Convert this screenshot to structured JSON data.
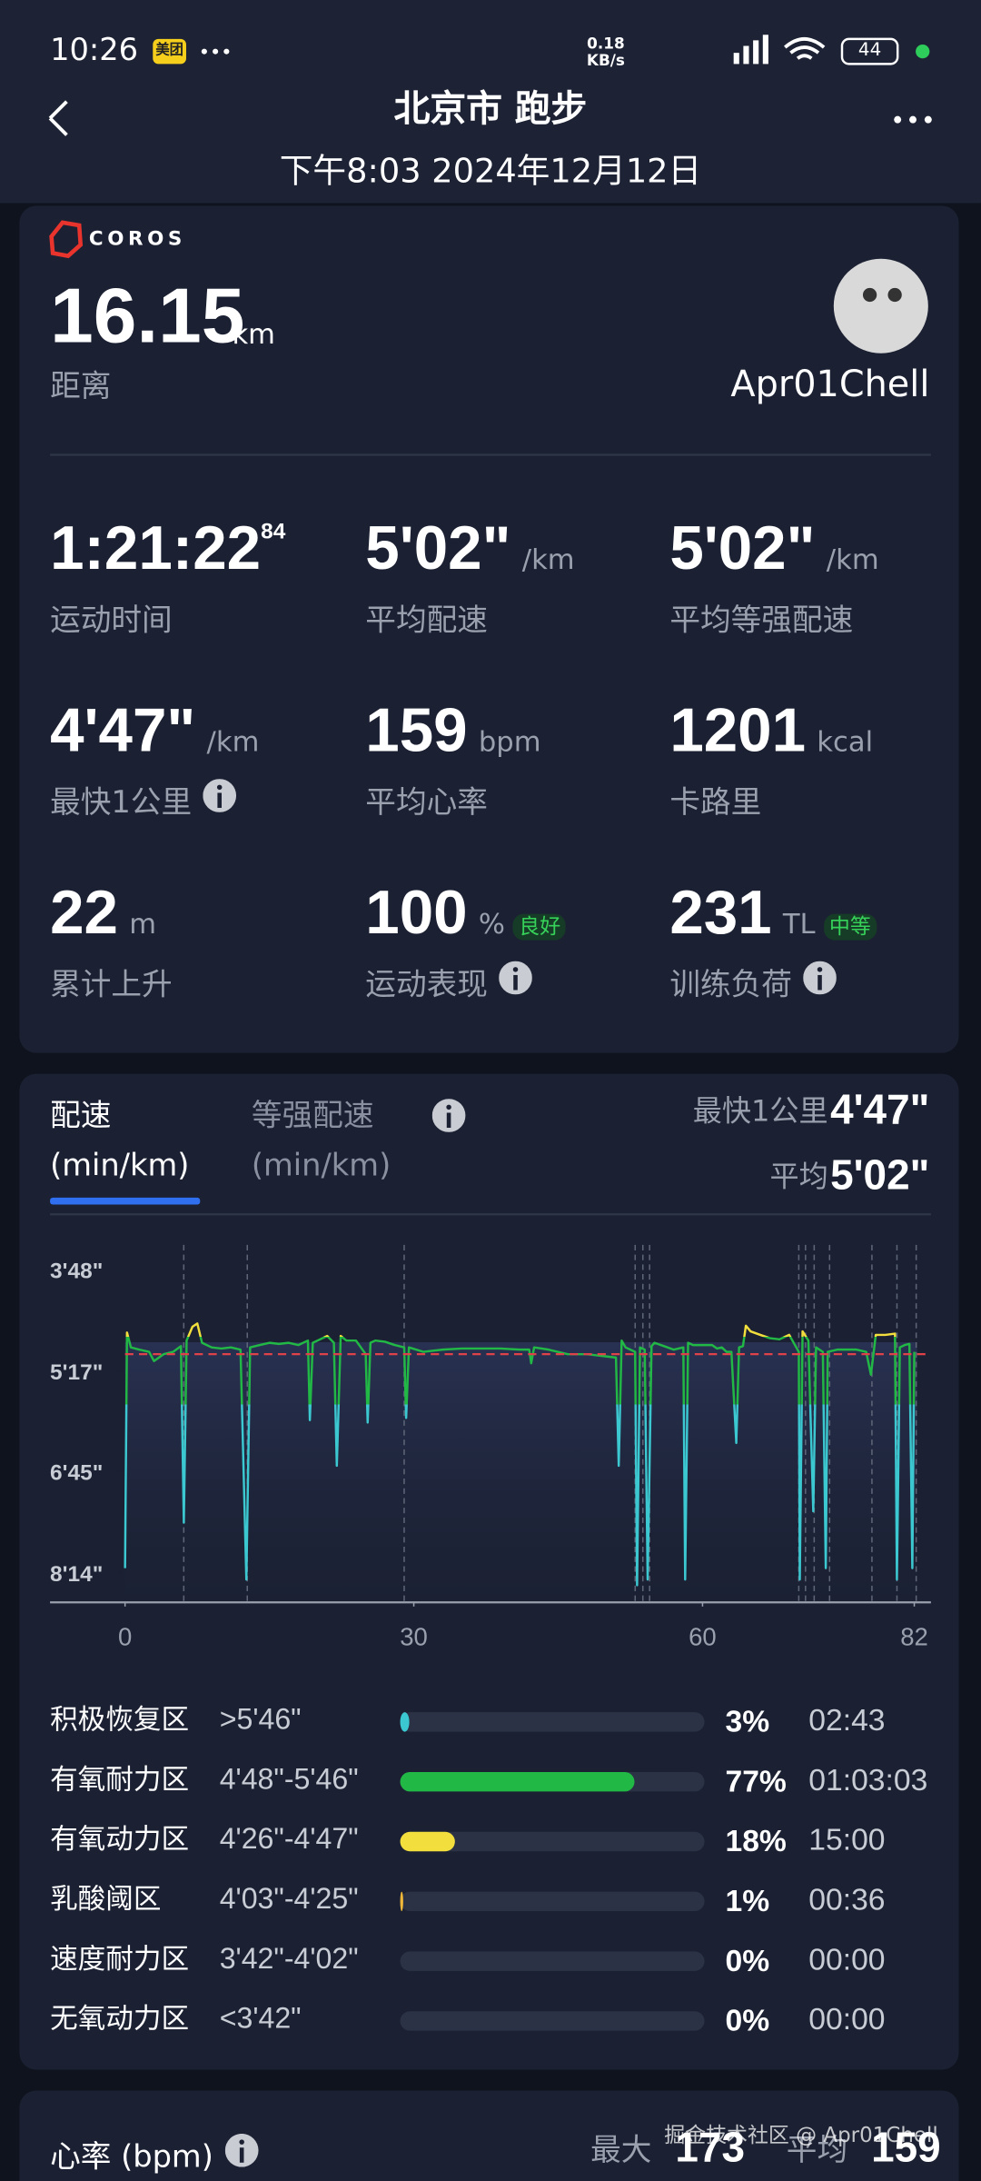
{
  "status_bar": {
    "time": "10:26",
    "app_badge": "美团",
    "net_speed": "0.18",
    "net_unit": "KB/s",
    "battery": "44"
  },
  "header": {
    "title": "北京市 跑步",
    "subtitle": "下午8:03 2024年12月12日"
  },
  "summary": {
    "brand": "COROS",
    "distance": "16.15",
    "distance_unit": "km",
    "distance_label": "距离",
    "user": "Apr01Chell",
    "stats": [
      {
        "value": "1:21:22",
        "sup": "84",
        "label": "运动时间"
      },
      {
        "value": "5'02\"",
        "unit": "/km",
        "label": "平均配速"
      },
      {
        "value": "5'02\"",
        "unit": "/km",
        "label": "平均等强配速"
      },
      {
        "value": "4'47\"",
        "unit": "/km",
        "label": "最快1公里",
        "info": true
      },
      {
        "value": "159",
        "unit": "bpm",
        "label": "平均心率"
      },
      {
        "value": "1201",
        "unit": "kcal",
        "label": "卡路里"
      },
      {
        "value": "22",
        "unit": "m",
        "label": "累计上升"
      },
      {
        "value": "100",
        "unit": "%",
        "badge": "良好",
        "label": "运动表现",
        "info": true
      },
      {
        "value": "231",
        "unit": "TL",
        "badge": "中等",
        "label": "训练负荷",
        "info": true
      }
    ]
  },
  "pace_card": {
    "tabs": [
      {
        "title": "配速",
        "unit": "(min/km)",
        "active": true
      },
      {
        "title": "等强配速",
        "unit": "(min/km)",
        "active": false,
        "info": true
      }
    ],
    "fastest_label": "最快1公里",
    "fastest": "4'47\"",
    "average_label": "平均",
    "zones": [
      {
        "name": "积极恢复区",
        "range": ">5'46\"",
        "percent": 3,
        "percent_label": "3%",
        "time": "02:43",
        "color": "#3cc8d0"
      },
      {
        "name": "有氧耐力区",
        "range": "4'48\"-5'46\"",
        "percent": 77,
        "percent_label": "77%",
        "time": "01:03:03",
        "color": "#22b845"
      },
      {
        "name": "有氧动力区",
        "range": "4'26\"-4'47\"",
        "percent": 18,
        "percent_label": "18%",
        "time": "15:00",
        "color": "#f2de3c"
      },
      {
        "name": "乳酸阈区",
        "range": "4'03\"-4'25\"",
        "percent": 1,
        "percent_label": "1%",
        "time": "00:36",
        "color": "#f0b838"
      },
      {
        "name": "速度耐力区",
        "range": "3'42\"-4'02\"",
        "percent": 0,
        "percent_label": "0%",
        "time": "00:00"
      },
      {
        "name": "无氧动力区",
        "range": "<3'42\"",
        "percent": 0,
        "percent_label": "0%",
        "time": "00:00"
      }
    ]
  },
  "chart_data": {
    "type": "line",
    "x": [
      0,
      0.2,
      0.6,
      1.5,
      2.5,
      3,
      4,
      5,
      5.8,
      6.1,
      6.4,
      7,
      7.5,
      8,
      9,
      10,
      11,
      12,
      12.6,
      13,
      14,
      15,
      16,
      17,
      18,
      19,
      19.2,
      19.5,
      20,
      21,
      21.7,
      22,
      22.4,
      23,
      24,
      25,
      25.2,
      25.5,
      26,
      27,
      28,
      29,
      29.2,
      29.5,
      31,
      33,
      35,
      37,
      39,
      41,
      42,
      42.2,
      42.5,
      44,
      46,
      48,
      49,
      50,
      51,
      51.3,
      51.6,
      52,
      53,
      53.2,
      53.5,
      54,
      54.3,
      54.7,
      55,
      56,
      57,
      58,
      58.2,
      58.5,
      59,
      60,
      61,
      61.5,
      62,
      62.5,
      63,
      63.5,
      63.8,
      64.2,
      64.5,
      65,
      66,
      67,
      68,
      69,
      70,
      70.1,
      70.4,
      71,
      71.5,
      71.8,
      72.5,
      72.8,
      73,
      74,
      75,
      76,
      77,
      77.5,
      78,
      79,
      80,
      80.2,
      80.5,
      81,
      81.5,
      81.8,
      82
    ],
    "values": [
      490,
      283,
      296,
      298,
      300,
      308,
      302,
      300,
      295,
      450,
      290,
      278,
      275,
      292,
      296,
      297,
      296,
      298,
      500,
      296,
      294,
      292,
      293,
      292,
      294,
      290,
      360,
      292,
      290,
      286,
      292,
      400,
      286,
      290,
      290,
      302,
      362,
      292,
      290,
      291,
      294,
      296,
      358,
      296,
      300,
      298,
      297,
      297,
      297,
      298,
      298,
      310,
      296,
      298,
      302,
      302,
      303,
      304,
      305,
      400,
      290,
      296,
      300,
      505,
      296,
      298,
      500,
      295,
      292,
      295,
      298,
      296,
      500,
      292,
      294,
      294,
      294,
      297,
      296,
      300,
      300,
      380,
      296,
      295,
      277,
      282,
      285,
      288,
      289,
      285,
      300,
      500,
      282,
      290,
      440,
      296,
      300,
      490,
      300,
      298,
      298,
      298,
      300,
      320,
      285,
      285,
      284,
      500,
      296,
      294,
      293,
      490,
      300
    ],
    "y_inverted": true,
    "ylim": [
      206,
      520
    ],
    "yticks": [
      {
        "value": 228,
        "label": "3'48\""
      },
      {
        "value": 317,
        "label": "5'17\""
      },
      {
        "value": 405,
        "label": "6'45\""
      },
      {
        "value": 494,
        "label": "8'14\""
      }
    ],
    "xlim": [
      0,
      82
    ],
    "xticks": [
      0,
      30,
      60,
      82
    ],
    "average": {
      "value": 302,
      "label": "5'02\""
    },
    "average_color": "#e0424a",
    "markers": [
      6.1,
      12.7,
      29.0,
      53.0,
      53.8,
      54.5,
      70.0,
      70.7,
      71.6,
      73.2,
      77.6,
      80.2,
      82.2
    ]
  },
  "heart_card": {
    "title": "心率 (bpm)",
    "max_label": "最大",
    "max": "173",
    "avg_label": "平均",
    "avg": "159"
  },
  "watermark": "掘金技术社区 @ Apr01Chell"
}
